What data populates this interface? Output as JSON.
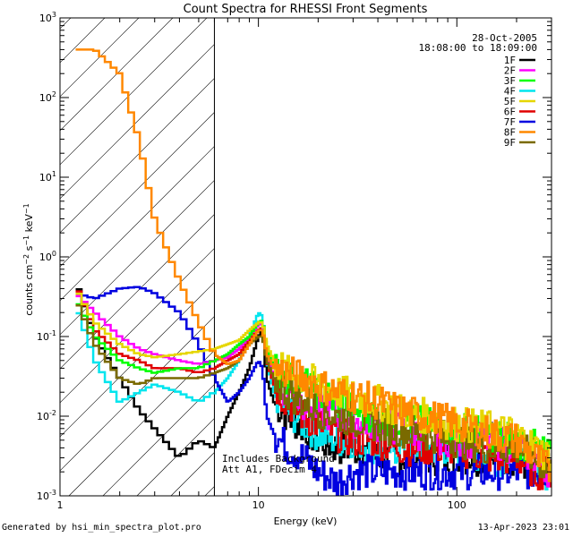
{
  "chart_data": {
    "type": "line",
    "title": "Count Spectra for RHESSI Front Segments",
    "xlabel": "Energy (keV)",
    "ylabel_parts": [
      "counts cm",
      "−2",
      " s",
      "−1",
      " keV",
      "−1"
    ],
    "xscale": "log",
    "yscale": "log",
    "xlim": [
      1,
      300
    ],
    "ylim": [
      0.001,
      1000
    ],
    "x_tick_labels": [
      "1",
      "10",
      "100"
    ],
    "y_tick_labels": [
      {
        "base": "10",
        "exp": "-3"
      },
      {
        "base": "10",
        "exp": "-2"
      },
      {
        "base": "10",
        "exp": "-1"
      },
      {
        "base": "10",
        "exp": "0"
      },
      {
        "base": "10",
        "exp": "1"
      },
      {
        "base": "10",
        "exp": "2"
      },
      {
        "base": "10",
        "exp": "3"
      }
    ],
    "y_tick_exponents": [
      -3,
      -2,
      -1,
      0,
      1,
      2,
      3
    ],
    "hatch_until_kev": 6,
    "annotation_date": "28-Oct-2005",
    "annotation_time": "18:08:00 to 18:09:00",
    "annotation_note_1": "Includes Background",
    "annotation_note_2": "Att A1, FDecim 4",
    "series": [
      {
        "name": "1F",
        "color": "#000000"
      },
      {
        "name": "2F",
        "color": "#ff00ff"
      },
      {
        "name": "3F",
        "color": "#00ff00"
      },
      {
        "name": "4F",
        "color": "#00e5ee"
      },
      {
        "name": "5F",
        "color": "#e5d600"
      },
      {
        "name": "6F",
        "color": "#e00000"
      },
      {
        "name": "7F",
        "color": "#0000e0"
      },
      {
        "name": "8F",
        "color": "#ff8800"
      },
      {
        "name": "9F",
        "color": "#7a6a00"
      }
    ],
    "shared_x_kev": [
      1.2,
      1.5,
      2,
      2.5,
      3,
      4,
      5,
      6,
      7,
      8,
      9,
      10,
      10.5,
      11,
      12,
      14,
      17,
      20,
      25,
      30,
      40,
      50,
      70,
      100,
      150,
      200,
      250,
      300
    ],
    "values": {
      "1F": [
        0.5,
        0.1,
        0.03,
        0.012,
        0.007,
        0.003,
        0.005,
        0.004,
        0.01,
        0.02,
        0.04,
        0.1,
        0.12,
        0.03,
        0.015,
        0.01,
        0.007,
        0.005,
        0.004,
        0.004,
        0.003,
        0.003,
        0.003,
        0.003,
        0.003,
        0.003,
        0.002,
        0.002
      ],
      "2F": [
        0.35,
        0.2,
        0.1,
        0.07,
        0.06,
        0.05,
        0.045,
        0.05,
        0.055,
        0.07,
        0.1,
        0.14,
        0.15,
        0.06,
        0.03,
        0.02,
        0.015,
        0.012,
        0.01,
        0.009,
        0.008,
        0.007,
        0.006,
        0.005,
        0.005,
        0.004,
        0.003,
        0.002
      ],
      "3F": [
        0.3,
        0.1,
        0.05,
        0.04,
        0.035,
        0.04,
        0.04,
        0.05,
        0.06,
        0.08,
        0.1,
        0.15,
        0.16,
        0.07,
        0.04,
        0.03,
        0.025,
        0.02,
        0.015,
        0.012,
        0.01,
        0.009,
        0.008,
        0.007,
        0.006,
        0.005,
        0.004,
        0.003
      ],
      "4F": [
        0.25,
        0.05,
        0.015,
        0.02,
        0.025,
        0.02,
        0.015,
        0.02,
        0.03,
        0.05,
        0.1,
        0.2,
        0.18,
        0.05,
        0.02,
        0.012,
        0.008,
        0.006,
        0.005,
        0.005,
        0.004,
        0.004,
        0.004,
        0.004,
        0.003,
        0.003,
        0.002,
        0.002
      ],
      "5F": [
        0.4,
        0.15,
        0.08,
        0.06,
        0.055,
        0.06,
        0.065,
        0.07,
        0.08,
        0.09,
        0.12,
        0.15,
        0.15,
        0.08,
        0.05,
        0.035,
        0.03,
        0.025,
        0.02,
        0.018,
        0.015,
        0.012,
        0.01,
        0.008,
        0.007,
        0.006,
        0.004,
        0.003
      ],
      "6F": [
        0.45,
        0.12,
        0.06,
        0.05,
        0.04,
        0.04,
        0.035,
        0.04,
        0.05,
        0.06,
        0.09,
        0.12,
        0.13,
        0.05,
        0.025,
        0.015,
        0.01,
        0.008,
        0.006,
        0.005,
        0.005,
        0.004,
        0.004,
        0.004,
        0.003,
        0.003,
        0.002,
        0.002
      ],
      "7F": [
        0.35,
        0.3,
        0.4,
        0.42,
        0.35,
        0.2,
        0.08,
        0.03,
        0.015,
        0.02,
        0.03,
        0.05,
        0.04,
        0.01,
        0.006,
        0.004,
        0.003,
        0.002,
        0.0015,
        0.002,
        0.002,
        0.002,
        0.002,
        0.002,
        0.002,
        0.002,
        0.002,
        0.002
      ],
      "8F": [
        400,
        400,
        200,
        30,
        3,
        0.5,
        0.15,
        0.06,
        0.045,
        0.05,
        0.08,
        0.12,
        0.12,
        0.06,
        0.04,
        0.035,
        0.03,
        0.025,
        0.02,
        0.018,
        0.015,
        0.012,
        0.01,
        0.008,
        0.006,
        0.005,
        0.003,
        0.002
      ],
      "9F": [
        0.3,
        0.08,
        0.03,
        0.025,
        0.03,
        0.03,
        0.03,
        0.035,
        0.04,
        0.05,
        0.08,
        0.1,
        0.1,
        0.05,
        0.03,
        0.02,
        0.015,
        0.012,
        0.01,
        0.009,
        0.008,
        0.007,
        0.006,
        0.005,
        0.004,
        0.004,
        0.003,
        0.002
      ]
    }
  },
  "footer": {
    "generated_by": "Generated by hsi_min_spectra_plot.pro",
    "timestamp": "13-Apr-2023 23:01"
  }
}
